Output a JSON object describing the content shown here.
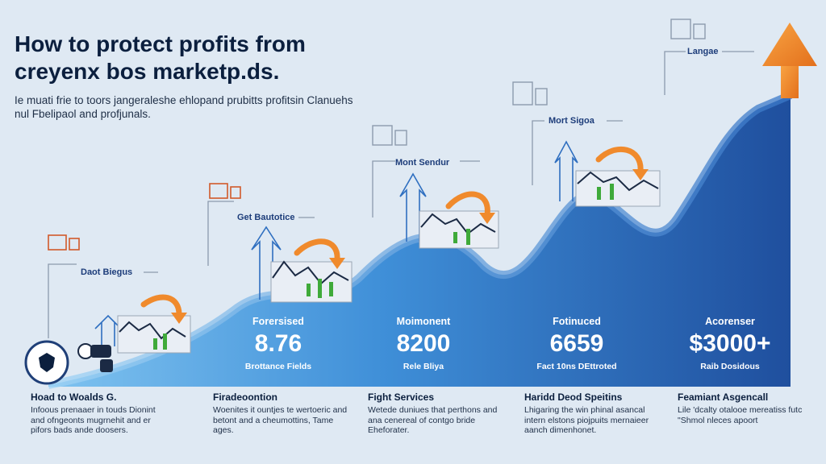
{
  "title": "How to protect profits from creyenx bos marketp.ds.",
  "subtitle": "Ie muati frie to toors jangeraleshe ehlopand prubitts profitsin Clanuehs nul Fbelipaol and profjunals.",
  "colors": {
    "wave_light": "#58a9e6",
    "wave_dark": "#1f4f9e",
    "arrow_orange": "#f08a2c",
    "line_gray": "#8c9aad",
    "text_dark": "#0b1f3e",
    "label_blue": "#1d3d7a"
  },
  "icons": [
    "shield-icon",
    "handshake-icon",
    "building-icon",
    "arrow-up-icon",
    "curved-arrow-icon",
    "candlestick-icon"
  ],
  "step_labels": [
    "Daot Biegus",
    "Get Bautotice",
    "Mont Sendur",
    "Mort Sigoa",
    "Langae"
  ],
  "stats": [
    {
      "title": "Forersised",
      "value": "8.76",
      "sub": "Brottance Fields"
    },
    {
      "title": "Moimonent",
      "value": "8200",
      "sub": "Rele Bliya"
    },
    {
      "title": "Fotinuced",
      "value": "6659",
      "sub": "Fact 10ns DEttroted"
    },
    {
      "title": "Acorenser",
      "value": "$3000+",
      "sub": "Raib Dosidous"
    }
  ],
  "columns": [
    {
      "title": "Hoad to Woalds G.",
      "desc": "Infoous prenaaer in touds Dionint and ofngeonts mugrnehit and er pifors bads ande doosers."
    },
    {
      "title": "Firadeoontion",
      "desc": "Woenites it ountjes te wertoeric and betont and a cheumottins, Tame ages."
    },
    {
      "title": "Fight Services",
      "desc": "Wetede duniues that perthons and ana cenereal of contgo bride Eheforater."
    },
    {
      "title": "Haridd Deod Speitins",
      "desc": "Lhigaring the win phinal asancal intern elstons piojpuits mernaieer aanch dimenhonet."
    },
    {
      "title": "Feamiant Asgencall",
      "desc": "Lile 'dcalty otalooe mereatiss futc \"Shmol nleces apoort"
    }
  ]
}
